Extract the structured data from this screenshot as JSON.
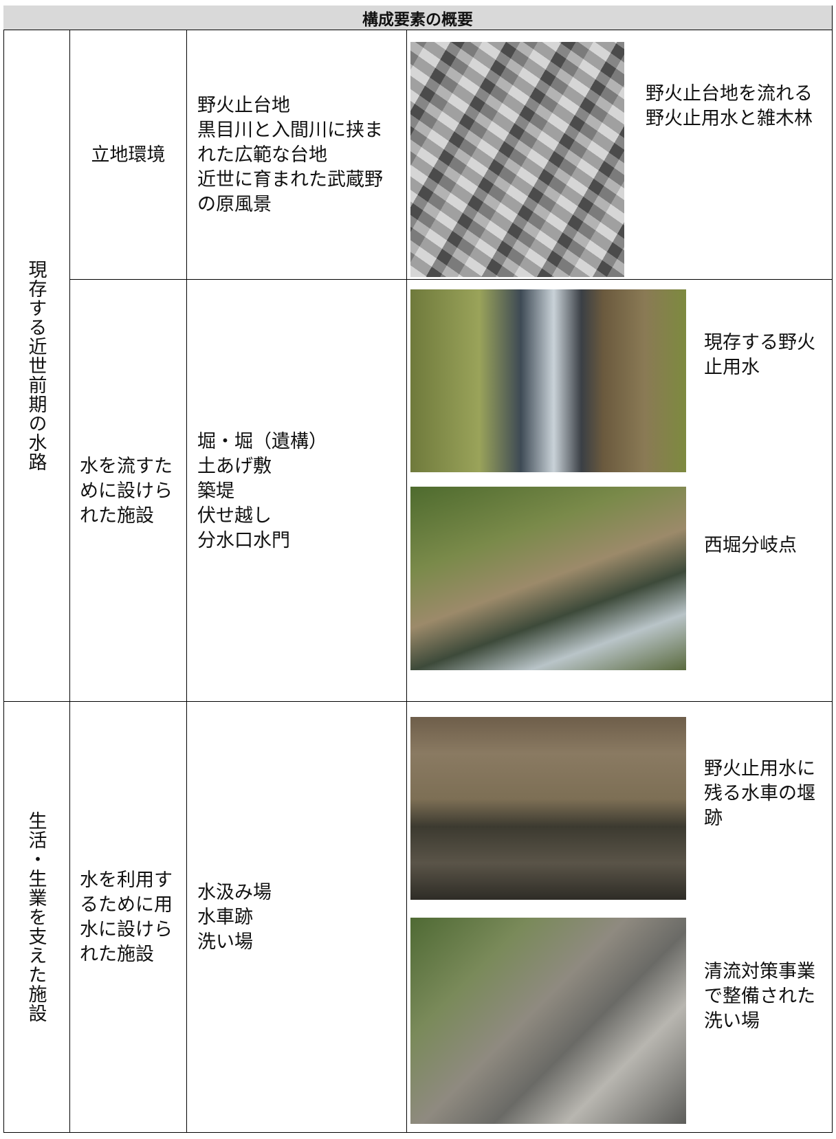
{
  "header": {
    "title": "構成要素の概要"
  },
  "groups": [
    {
      "label": "現存する近世前期の水路",
      "rows": [
        {
          "category": "立地環境",
          "items": [
            "野火止台地",
            "黒目川と入間川に挟まれた広範な台地",
            "近世に育まれた武蔵野の原風景"
          ],
          "photos": [
            {
              "caption": "野火止台地を流れる野火止用水と雑木林"
            }
          ]
        },
        {
          "category": "水を流すために設けられた施設",
          "items": [
            "堀・堀（遺構）",
            "土あげ敷",
            "築堤",
            "伏せ越し",
            "分水口水門"
          ],
          "photos": [
            {
              "caption": "現存する野火止用水"
            },
            {
              "caption": "西堀分岐点"
            }
          ]
        }
      ]
    },
    {
      "label": "生活・生業を支えた施設",
      "rows": [
        {
          "category": "水を利用するために用水に設けられた施設",
          "items": [
            "水汲み場",
            "水車跡",
            "洗い場"
          ],
          "photos": [
            {
              "caption": "野火止用水に残る水車の堰跡"
            },
            {
              "caption": "清流対策事業で整備された洗い場"
            }
          ]
        }
      ]
    }
  ]
}
